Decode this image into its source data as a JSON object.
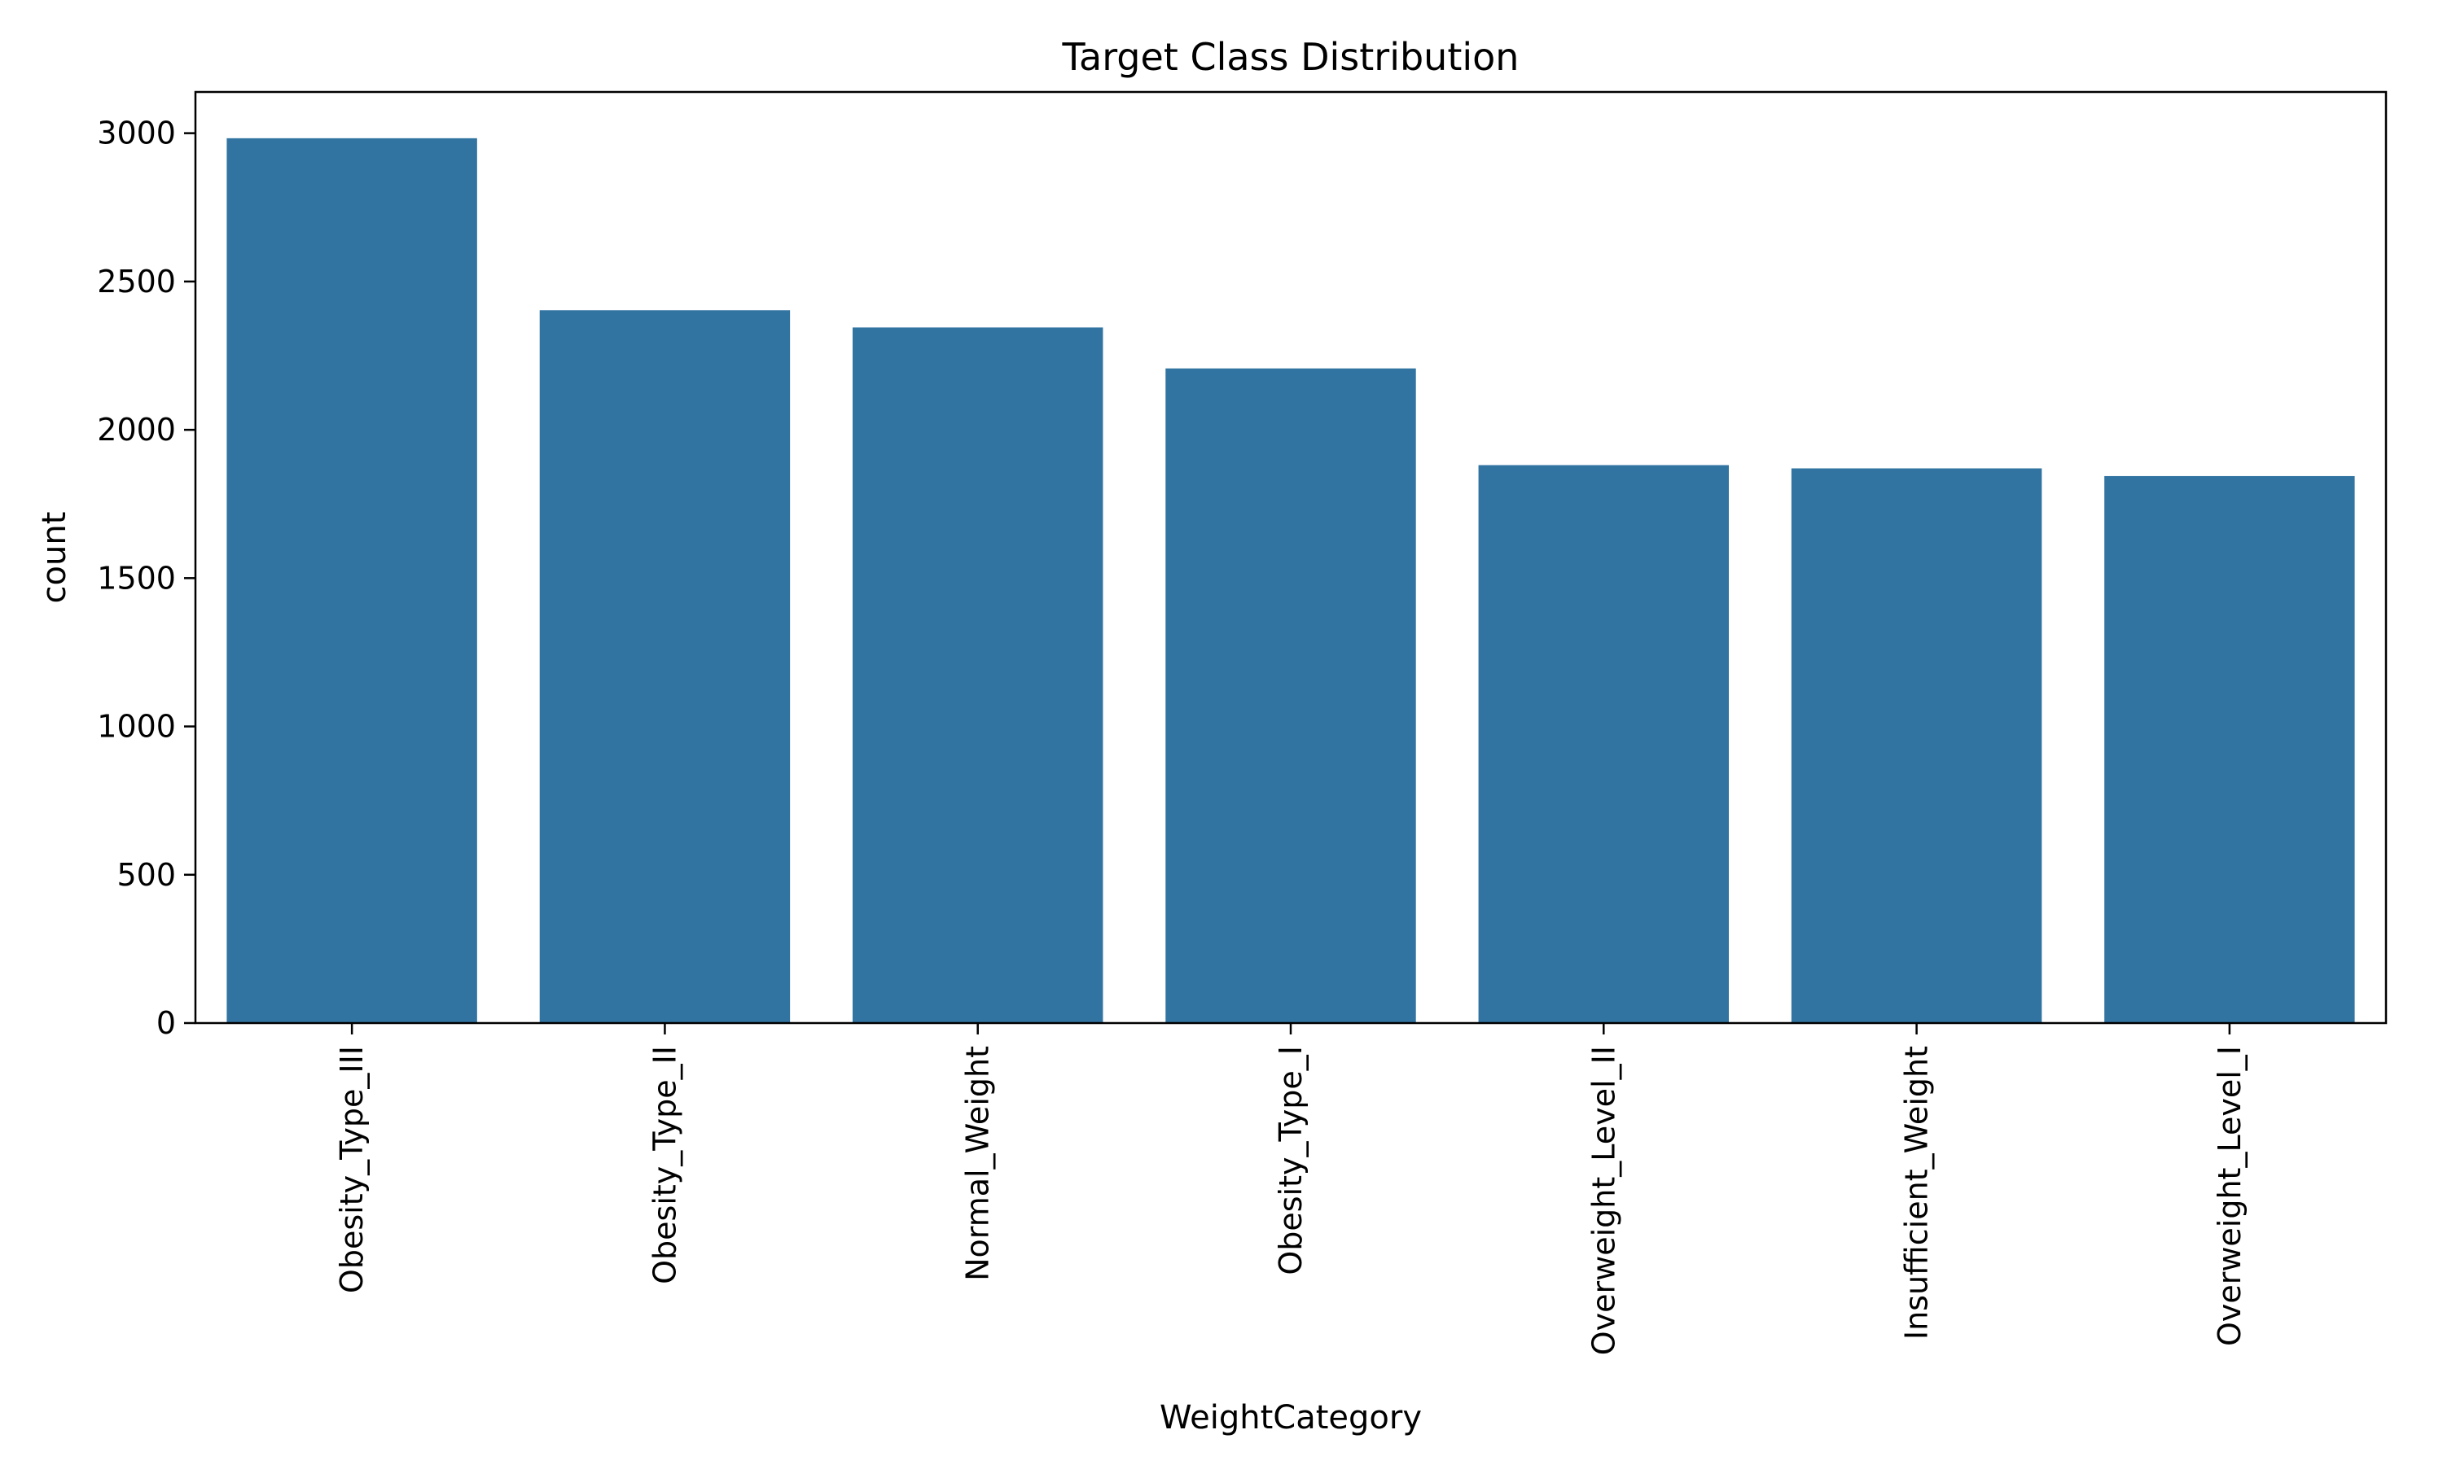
{
  "chart_data": {
    "type": "bar",
    "title": "Target Class Distribution",
    "xlabel": "WeightCategory",
    "ylabel": "count",
    "categories": [
      "Obesity_Type_III",
      "Obesity_Type_II",
      "Normal_Weight",
      "Obesity_Type_I",
      "Overweight_Level_II",
      "Insufficient_Weight",
      "Overweight_Level_I"
    ],
    "values": [
      2983,
      2403,
      2345,
      2207,
      1881,
      1870,
      1844
    ],
    "ylim": [
      0,
      3139
    ],
    "yticks": [
      0,
      500,
      1000,
      1500,
      2000,
      2500,
      3000
    ],
    "grid": false,
    "bar_color": "#3274a1"
  }
}
